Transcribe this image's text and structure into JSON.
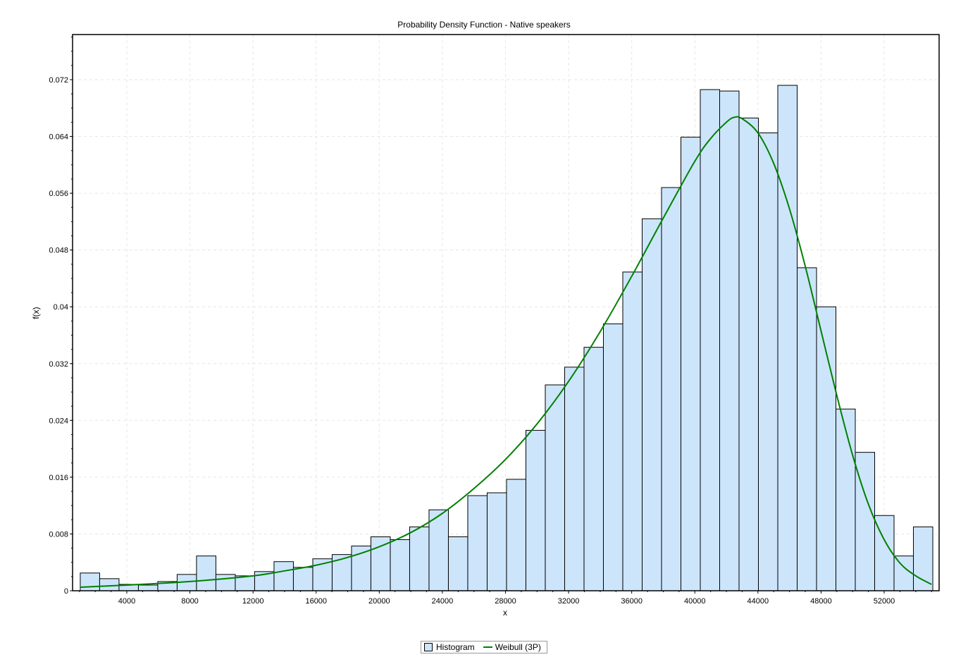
{
  "chart_data": {
    "type": "bar",
    "title": "Probability Density Function - Native speakers",
    "xlabel": "x",
    "ylabel": "f(x)",
    "xlim": [
      500,
      54900
    ],
    "ylim": [
      0,
      0.0785
    ],
    "grid": true,
    "legend_position": "bottom",
    "x_ticks": [
      4000,
      8000,
      12000,
      16000,
      20000,
      24000,
      28000,
      32000,
      36000,
      40000,
      44000,
      48000,
      52000
    ],
    "y_ticks": [
      0,
      0.008,
      0.016,
      0.024,
      0.032,
      0.04,
      0.048,
      0.056,
      0.064,
      0.072
    ],
    "y_tick_labels": [
      "0",
      "0.008",
      "0.016",
      "0.024",
      "0.032",
      "0.04",
      "0.048",
      "0.056",
      "0.064",
      "0.072"
    ],
    "x_tick_labels": [
      "4000",
      "8000",
      "12000",
      "16000",
      "20000",
      "24000",
      "28000",
      "32000",
      "36000",
      "40000",
      "44000",
      "48000",
      "52000"
    ],
    "histogram": {
      "name": "Histogram",
      "bin_start": 1050,
      "bin_width": 1228,
      "values": [
        0.0025,
        0.0017,
        0.0009,
        0.0008,
        0.0013,
        0.0023,
        0.0049,
        0.0023,
        0.0021,
        0.0027,
        0.0041,
        0.0033,
        0.0045,
        0.0051,
        0.0063,
        0.0076,
        0.0072,
        0.009,
        0.0114,
        0.0076,
        0.0134,
        0.0138,
        0.0157,
        0.0226,
        0.029,
        0.0315,
        0.0343,
        0.0376,
        0.0449,
        0.0524,
        0.0568,
        0.0639,
        0.0706,
        0.0704,
        0.0666,
        0.0645,
        0.0712,
        0.0455,
        0.04,
        0.0256,
        0.0195,
        0.0106,
        0.0049,
        0.009
      ],
      "fill": "#cce5fb",
      "stroke": "#000000"
    },
    "series": [
      {
        "name": "Weibull (3P)",
        "type": "line",
        "color": "#008000",
        "x": [
          1050,
          4000,
          8000,
          12000,
          14000,
          16000,
          18000,
          20000,
          22000,
          24000,
          26000,
          28000,
          30000,
          32000,
          34000,
          36000,
          38000,
          40000,
          41000,
          42000,
          42500,
          43000,
          44000,
          45000,
          46000,
          47000,
          48000,
          49000,
          50000,
          51000,
          52000,
          53000,
          54000,
          55000
        ],
        "y": [
          0.0005,
          0.0008,
          0.0013,
          0.0021,
          0.0028,
          0.0036,
          0.0047,
          0.0062,
          0.0082,
          0.0109,
          0.0144,
          0.0185,
          0.0235,
          0.0295,
          0.0365,
          0.0443,
          0.0525,
          0.0605,
          0.0637,
          0.066,
          0.0667,
          0.0665,
          0.0645,
          0.0602,
          0.0538,
          0.0457,
          0.0366,
          0.0275,
          0.0191,
          0.0122,
          0.0072,
          0.0039,
          0.0021,
          0.0009
        ]
      }
    ]
  },
  "legend": {
    "items": [
      {
        "label": "Histogram",
        "swatch": "box"
      },
      {
        "label": "Weibull (3P)",
        "swatch": "line"
      }
    ]
  }
}
